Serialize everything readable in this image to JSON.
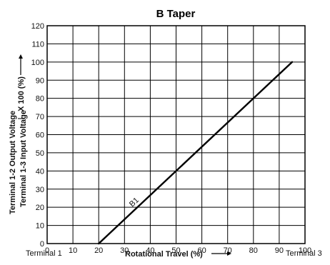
{
  "chart_data": {
    "type": "line",
    "title": "B Taper",
    "xlabel": "Rotational Travel (%)",
    "ylabel_line1": "Terminal 1-2 Output Voltage",
    "ylabel_line2": "Terminal 1-3 Input Voltage",
    "ylabel_scale": "X 100 (%)",
    "x_start_label": "Terminal 1",
    "x_end_label": "Terminal 3",
    "xlim": [
      0,
      100
    ],
    "ylim": [
      0,
      120
    ],
    "x_ticks": [
      0,
      10,
      20,
      30,
      40,
      50,
      60,
      70,
      80,
      90,
      100
    ],
    "y_ticks": [
      0,
      10,
      20,
      30,
      40,
      50,
      60,
      70,
      80,
      90,
      100,
      110,
      120
    ],
    "grid": true,
    "series": [
      {
        "name": "B1",
        "x": [
          20,
          95
        ],
        "y": [
          0,
          100
        ]
      }
    ],
    "annotation": {
      "text": "B1",
      "x": 33,
      "y": 20
    }
  }
}
